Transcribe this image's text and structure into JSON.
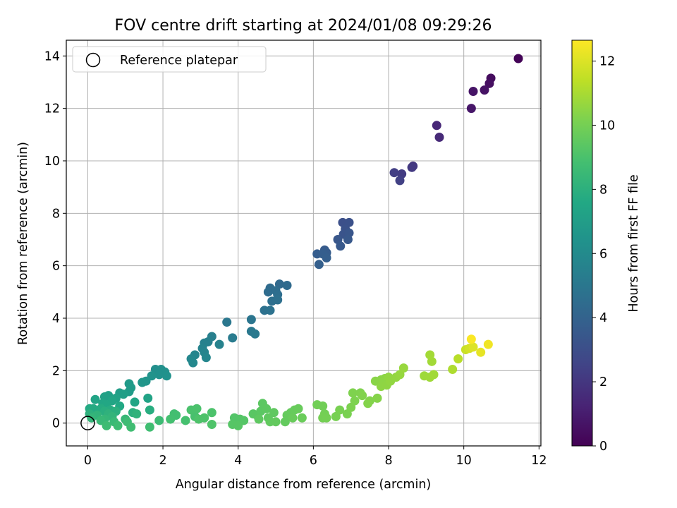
{
  "chart_data": {
    "type": "scatter",
    "title": "FOV centre drift starting at 2024/01/08 09:29:26",
    "xlabel": "Angular distance from reference (arcmin)",
    "ylabel": "Rotation from reference (arcmin)",
    "xlim": [
      -0.57,
      12.05
    ],
    "ylim": [
      -0.87,
      14.6
    ],
    "x_ticks": [
      0,
      2,
      4,
      6,
      8,
      10,
      12
    ],
    "y_ticks": [
      0,
      2,
      4,
      6,
      8,
      10,
      12,
      14
    ],
    "grid": true,
    "legend": {
      "placement": "top-left",
      "entries": [
        "Reference platepar"
      ]
    },
    "reference_point": {
      "x": 0,
      "y": 0
    },
    "colorbar": {
      "label": "Hours from first FF file",
      "range": [
        0,
        12.65
      ],
      "ticks": [
        0,
        2,
        4,
        6,
        8,
        10,
        12
      ],
      "colormap": "viridis",
      "colors": [
        "#440154",
        "#482475",
        "#414487",
        "#355f8d",
        "#2a788e",
        "#21918c",
        "#22a884",
        "#44bf70",
        "#7ad151",
        "#bddf26",
        "#fde725"
      ]
    },
    "series": [
      {
        "points": [
          {
            "x": 11.45,
            "y": 13.9,
            "t": 0.1
          },
          {
            "x": 10.72,
            "y": 13.15,
            "t": 0.4
          },
          {
            "x": 10.68,
            "y": 12.95,
            "t": 0.5
          },
          {
            "x": 10.55,
            "y": 12.7,
            "t": 0.6
          },
          {
            "x": 10.25,
            "y": 12.65,
            "t": 0.7
          },
          {
            "x": 10.2,
            "y": 12.0,
            "t": 0.8
          },
          {
            "x": 9.28,
            "y": 11.35,
            "t": 1.4
          },
          {
            "x": 9.35,
            "y": 10.9,
            "t": 1.5
          },
          {
            "x": 8.65,
            "y": 9.8,
            "t": 2.0
          },
          {
            "x": 8.62,
            "y": 9.75,
            "t": 2.1
          },
          {
            "x": 8.35,
            "y": 9.5,
            "t": 2.2
          },
          {
            "x": 8.15,
            "y": 9.55,
            "t": 2.3
          },
          {
            "x": 8.3,
            "y": 9.25,
            "t": 2.4
          },
          {
            "x": 6.78,
            "y": 7.65,
            "t": 3.1
          },
          {
            "x": 6.95,
            "y": 7.65,
            "t": 3.15
          },
          {
            "x": 6.85,
            "y": 7.4,
            "t": 3.2
          },
          {
            "x": 6.8,
            "y": 7.2,
            "t": 3.3
          },
          {
            "x": 6.95,
            "y": 7.25,
            "t": 3.35
          },
          {
            "x": 6.65,
            "y": 7.0,
            "t": 3.4
          },
          {
            "x": 6.92,
            "y": 7.0,
            "t": 3.45
          },
          {
            "x": 6.72,
            "y": 6.75,
            "t": 3.5
          },
          {
            "x": 6.3,
            "y": 6.6,
            "t": 3.6
          },
          {
            "x": 6.35,
            "y": 6.5,
            "t": 3.65
          },
          {
            "x": 6.1,
            "y": 6.45,
            "t": 3.7
          },
          {
            "x": 6.25,
            "y": 6.45,
            "t": 3.75
          },
          {
            "x": 6.35,
            "y": 6.3,
            "t": 3.8
          },
          {
            "x": 6.15,
            "y": 6.05,
            "t": 3.85
          },
          {
            "x": 5.1,
            "y": 5.3,
            "t": 4.3
          },
          {
            "x": 5.3,
            "y": 5.25,
            "t": 4.35
          },
          {
            "x": 4.85,
            "y": 5.15,
            "t": 4.4
          },
          {
            "x": 4.8,
            "y": 5.0,
            "t": 4.45
          },
          {
            "x": 5.0,
            "y": 5.05,
            "t": 4.5
          },
          {
            "x": 5.05,
            "y": 4.9,
            "t": 4.55
          },
          {
            "x": 4.9,
            "y": 4.65,
            "t": 4.6
          },
          {
            "x": 5.05,
            "y": 4.7,
            "t": 4.65
          },
          {
            "x": 4.7,
            "y": 4.3,
            "t": 4.7
          },
          {
            "x": 4.85,
            "y": 4.3,
            "t": 4.75
          },
          {
            "x": 4.35,
            "y": 3.95,
            "t": 4.9
          },
          {
            "x": 3.7,
            "y": 3.85,
            "t": 5.0
          },
          {
            "x": 4.35,
            "y": 3.5,
            "t": 5.05
          },
          {
            "x": 4.45,
            "y": 3.4,
            "t": 5.1
          },
          {
            "x": 3.85,
            "y": 3.25,
            "t": 5.2
          },
          {
            "x": 3.3,
            "y": 3.3,
            "t": 5.4
          },
          {
            "x": 3.2,
            "y": 3.1,
            "t": 5.45
          },
          {
            "x": 3.1,
            "y": 3.05,
            "t": 5.5
          },
          {
            "x": 3.5,
            "y": 3.0,
            "t": 5.55
          },
          {
            "x": 3.05,
            "y": 2.85,
            "t": 5.6
          },
          {
            "x": 3.1,
            "y": 2.7,
            "t": 5.65
          },
          {
            "x": 2.85,
            "y": 2.6,
            "t": 5.7
          },
          {
            "x": 3.15,
            "y": 2.5,
            "t": 5.75
          },
          {
            "x": 2.75,
            "y": 2.45,
            "t": 5.8
          },
          {
            "x": 2.8,
            "y": 2.3,
            "t": 5.85
          },
          {
            "x": 1.8,
            "y": 2.05,
            "t": 6.2
          },
          {
            "x": 1.95,
            "y": 2.05,
            "t": 6.25
          },
          {
            "x": 2.05,
            "y": 1.95,
            "t": 6.3
          },
          {
            "x": 1.9,
            "y": 1.85,
            "t": 6.35
          },
          {
            "x": 2.1,
            "y": 1.8,
            "t": 6.4
          },
          {
            "x": 1.7,
            "y": 1.8,
            "t": 6.45
          },
          {
            "x": 1.55,
            "y": 1.6,
            "t": 6.55
          },
          {
            "x": 1.45,
            "y": 1.55,
            "t": 6.6
          },
          {
            "x": 1.1,
            "y": 1.5,
            "t": 6.8
          },
          {
            "x": 1.15,
            "y": 1.35,
            "t": 6.85
          },
          {
            "x": 1.1,
            "y": 1.2,
            "t": 6.9
          },
          {
            "x": 0.85,
            "y": 1.15,
            "t": 7.0
          },
          {
            "x": 0.95,
            "y": 1.1,
            "t": 7.05
          },
          {
            "x": 0.55,
            "y": 1.05,
            "t": 7.15
          },
          {
            "x": 0.45,
            "y": 1.0,
            "t": 7.2
          },
          {
            "x": 0.75,
            "y": 0.95,
            "t": 7.25
          },
          {
            "x": 1.6,
            "y": 0.95,
            "t": 7.3
          },
          {
            "x": 0.2,
            "y": 0.9,
            "t": 7.35
          },
          {
            "x": 0.65,
            "y": 0.85,
            "t": 7.4
          },
          {
            "x": 1.25,
            "y": 0.8,
            "t": 7.45
          },
          {
            "x": 0.4,
            "y": 0.75,
            "t": 7.5
          },
          {
            "x": 0.5,
            "y": 0.7,
            "t": 7.55
          },
          {
            "x": 0.85,
            "y": 0.65,
            "t": 7.6
          },
          {
            "x": 0.05,
            "y": 0.55,
            "t": 7.65
          },
          {
            "x": 0.15,
            "y": 0.55,
            "t": 7.7
          },
          {
            "x": 0.35,
            "y": 0.55,
            "t": 7.75
          },
          {
            "x": 0.6,
            "y": 0.5,
            "t": 7.8
          },
          {
            "x": 1.65,
            "y": 0.5,
            "t": 7.85
          },
          {
            "x": 0.45,
            "y": 0.45,
            "t": 7.9
          },
          {
            "x": 0.75,
            "y": 0.45,
            "t": 7.95
          },
          {
            "x": 1.2,
            "y": 0.4,
            "t": 8.0
          },
          {
            "x": 0.05,
            "y": 0.35,
            "t": 8.05
          },
          {
            "x": 0.55,
            "y": 0.35,
            "t": 8.1
          },
          {
            "x": 1.3,
            "y": 0.35,
            "t": 8.15
          },
          {
            "x": 0.25,
            "y": 0.3,
            "t": 8.2
          },
          {
            "x": 0.65,
            "y": 0.25,
            "t": 8.25
          },
          {
            "x": 0.1,
            "y": 0.2,
            "t": 8.3
          },
          {
            "x": 0.45,
            "y": 0.15,
            "t": 8.35
          },
          {
            "x": 1.0,
            "y": 0.15,
            "t": 8.4
          },
          {
            "x": 0.35,
            "y": 0.1,
            "t": 8.45
          },
          {
            "x": 0.7,
            "y": 0.05,
            "t": 8.5
          },
          {
            "x": 1.9,
            "y": 0.1,
            "t": 8.6
          },
          {
            "x": 1.05,
            "y": 0.05,
            "t": 8.62
          },
          {
            "x": 0.5,
            "y": -0.1,
            "t": 8.65
          },
          {
            "x": 0.8,
            "y": -0.1,
            "t": 8.68
          },
          {
            "x": 1.15,
            "y": -0.15,
            "t": 8.7
          },
          {
            "x": 1.65,
            "y": -0.15,
            "t": 8.72
          },
          {
            "x": 2.3,
            "y": 0.35,
            "t": 8.8
          },
          {
            "x": 2.35,
            "y": 0.3,
            "t": 8.82
          },
          {
            "x": 2.2,
            "y": 0.15,
            "t": 8.85
          },
          {
            "x": 2.6,
            "y": 0.1,
            "t": 8.9
          },
          {
            "x": 2.85,
            "y": 0.25,
            "t": 8.95
          },
          {
            "x": 2.75,
            "y": 0.5,
            "t": 9.0
          },
          {
            "x": 2.9,
            "y": 0.55,
            "t": 9.02
          },
          {
            "x": 3.3,
            "y": 0.4,
            "t": 9.05
          },
          {
            "x": 3.1,
            "y": 0.2,
            "t": 9.08
          },
          {
            "x": 2.95,
            "y": 0.15,
            "t": 9.1
          },
          {
            "x": 3.3,
            "y": -0.05,
            "t": 9.12
          },
          {
            "x": 3.9,
            "y": 0.2,
            "t": 9.2
          },
          {
            "x": 4.05,
            "y": 0.15,
            "t": 9.22
          },
          {
            "x": 4.15,
            "y": 0.1,
            "t": 9.25
          },
          {
            "x": 3.85,
            "y": -0.05,
            "t": 9.28
          },
          {
            "x": 4.0,
            "y": -0.1,
            "t": 9.3
          },
          {
            "x": 4.4,
            "y": 0.35,
            "t": 9.35
          },
          {
            "x": 4.5,
            "y": 0.3,
            "t": 9.38
          },
          {
            "x": 4.6,
            "y": 0.45,
            "t": 9.4
          },
          {
            "x": 4.65,
            "y": 0.75,
            "t": 9.42
          },
          {
            "x": 4.75,
            "y": 0.55,
            "t": 9.45
          },
          {
            "x": 4.55,
            "y": 0.15,
            "t": 9.48
          },
          {
            "x": 4.8,
            "y": 0.2,
            "t": 9.5
          },
          {
            "x": 4.95,
            "y": 0.4,
            "t": 9.52
          },
          {
            "x": 4.85,
            "y": 0.05,
            "t": 9.55
          },
          {
            "x": 5.0,
            "y": 0.05,
            "t": 9.58
          },
          {
            "x": 5.25,
            "y": 0.05,
            "t": 9.6
          },
          {
            "x": 5.3,
            "y": 0.3,
            "t": 9.62
          },
          {
            "x": 5.4,
            "y": 0.4,
            "t": 9.65
          },
          {
            "x": 5.5,
            "y": 0.5,
            "t": 9.68
          },
          {
            "x": 5.6,
            "y": 0.55,
            "t": 9.7
          },
          {
            "x": 5.45,
            "y": 0.2,
            "t": 9.72
          },
          {
            "x": 5.7,
            "y": 0.2,
            "t": 9.75
          },
          {
            "x": 6.1,
            "y": 0.7,
            "t": 9.9
          },
          {
            "x": 6.25,
            "y": 0.65,
            "t": 9.92
          },
          {
            "x": 6.3,
            "y": 0.35,
            "t": 9.95
          },
          {
            "x": 6.25,
            "y": 0.2,
            "t": 9.98
          },
          {
            "x": 6.35,
            "y": 0.2,
            "t": 10.0
          },
          {
            "x": 6.6,
            "y": 0.25,
            "t": 10.05
          },
          {
            "x": 6.7,
            "y": 0.5,
            "t": 10.08
          },
          {
            "x": 6.9,
            "y": 0.35,
            "t": 10.1
          },
          {
            "x": 7.0,
            "y": 0.6,
            "t": 10.15
          },
          {
            "x": 7.1,
            "y": 0.85,
            "t": 10.18
          },
          {
            "x": 7.05,
            "y": 1.15,
            "t": 10.2
          },
          {
            "x": 7.25,
            "y": 1.15,
            "t": 10.22
          },
          {
            "x": 7.3,
            "y": 1.05,
            "t": 10.25
          },
          {
            "x": 7.5,
            "y": 0.85,
            "t": 10.28
          },
          {
            "x": 7.45,
            "y": 0.75,
            "t": 10.3
          },
          {
            "x": 7.7,
            "y": 0.95,
            "t": 10.33
          },
          {
            "x": 7.65,
            "y": 1.6,
            "t": 10.4
          },
          {
            "x": 7.8,
            "y": 1.65,
            "t": 10.42
          },
          {
            "x": 7.9,
            "y": 1.7,
            "t": 10.45
          },
          {
            "x": 7.85,
            "y": 1.55,
            "t": 10.48
          },
          {
            "x": 7.8,
            "y": 1.4,
            "t": 10.5
          },
          {
            "x": 7.95,
            "y": 1.45,
            "t": 10.52
          },
          {
            "x": 8.0,
            "y": 1.75,
            "t": 10.55
          },
          {
            "x": 8.05,
            "y": 1.6,
            "t": 10.58
          },
          {
            "x": 8.2,
            "y": 1.75,
            "t": 10.6
          },
          {
            "x": 8.3,
            "y": 1.85,
            "t": 10.65
          },
          {
            "x": 8.4,
            "y": 2.1,
            "t": 10.68
          },
          {
            "x": 8.95,
            "y": 1.8,
            "t": 10.8
          },
          {
            "x": 9.1,
            "y": 1.75,
            "t": 10.82
          },
          {
            "x": 9.2,
            "y": 1.85,
            "t": 10.85
          },
          {
            "x": 9.15,
            "y": 2.35,
            "t": 10.88
          },
          {
            "x": 9.1,
            "y": 2.6,
            "t": 10.9
          },
          {
            "x": 9.7,
            "y": 2.05,
            "t": 11.1
          },
          {
            "x": 9.85,
            "y": 2.45,
            "t": 11.3
          },
          {
            "x": 10.05,
            "y": 2.8,
            "t": 11.6
          },
          {
            "x": 10.15,
            "y": 2.85,
            "t": 11.8
          },
          {
            "x": 10.25,
            "y": 2.9,
            "t": 12.0
          },
          {
            "x": 10.45,
            "y": 2.7,
            "t": 12.2
          },
          {
            "x": 10.65,
            "y": 3.0,
            "t": 12.4
          },
          {
            "x": 10.2,
            "y": 3.2,
            "t": 12.6
          }
        ]
      }
    ]
  }
}
